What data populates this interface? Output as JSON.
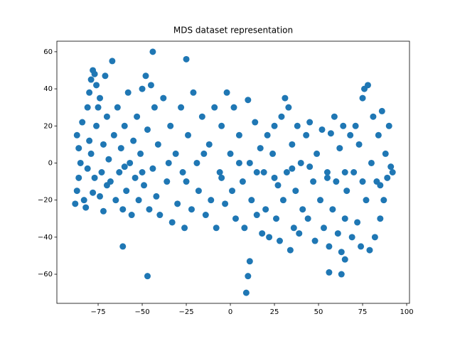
{
  "chart_data": {
    "type": "scatter",
    "title": "MDS dataset representation",
    "color": "#1f77b4",
    "x": [
      -88,
      -87,
      -86,
      -85,
      -86,
      -87,
      -84,
      -83,
      -82,
      -81,
      -80,
      -79,
      -78,
      -77,
      -76,
      -78,
      -77,
      -79,
      -80,
      -81,
      -76,
      -75,
      -74,
      -73,
      -72,
      -74,
      -72,
      -71,
      -70,
      -69,
      -67,
      -44,
      -25,
      -61,
      -47,
      9,
      10,
      11,
      56,
      63,
      65,
      -68,
      -66,
      -65,
      -64,
      -63,
      -62,
      -61,
      -60,
      -59,
      -58,
      -57,
      -56,
      -55,
      -54,
      -53,
      -52,
      -51,
      -50,
      -49,
      -48,
      -47,
      -46,
      -45,
      -44,
      -43,
      -42,
      -41,
      -40,
      -38,
      -36,
      -34,
      -33,
      -31,
      -30,
      -28,
      -27,
      -26,
      -24,
      -22,
      -21,
      -19,
      -18,
      -16,
      -14,
      -12,
      -11,
      -9,
      -8,
      -6,
      -5,
      -3,
      -2,
      0,
      1,
      2,
      3,
      5,
      7,
      8,
      10,
      11,
      12,
      14,
      15,
      17,
      18,
      19,
      20,
      21,
      22,
      24,
      25,
      26,
      27,
      28,
      29,
      30,
      31,
      32,
      33,
      34,
      35,
      36,
      37,
      38,
      39,
      40,
      41,
      43,
      44,
      45,
      47,
      48,
      49,
      51,
      52,
      53,
      55,
      56,
      57,
      58,
      59,
      60,
      61,
      62,
      63,
      64,
      65,
      66,
      68,
      69,
      70,
      71,
      72,
      73,
      74,
      75,
      76,
      77,
      78,
      79,
      80,
      81,
      82,
      83,
      84,
      85,
      86,
      87,
      88,
      89,
      90,
      91,
      92,
      -70,
      -60,
      -50,
      -35,
      -25,
      -15,
      -5,
      5,
      15,
      25,
      35,
      45,
      55,
      65,
      75,
      85
    ],
    "y": [
      -22,
      -15,
      -8,
      0,
      8,
      15,
      22,
      -20,
      -24,
      30,
      38,
      45,
      50,
      48,
      42,
      -16,
      -8,
      5,
      12,
      -3,
      20,
      30,
      35,
      -5,
      10,
      -18,
      -26,
      47,
      25,
      2,
      55,
      60,
      56,
      -45,
      -61,
      -70,
      -61,
      -53,
      -59,
      -60,
      -52,
      -10,
      15,
      -20,
      30,
      -5,
      8,
      -25,
      20,
      -15,
      38,
      0,
      -28,
      12,
      -8,
      25,
      -20,
      5,
      40,
      -12,
      47,
      18,
      -25,
      42,
      -3,
      30,
      -18,
      10,
      -28,
      35,
      -10,
      20,
      -32,
      5,
      -22,
      30,
      -5,
      -35,
      15,
      -25,
      38,
      0,
      -15,
      25,
      -28,
      10,
      -20,
      30,
      -35,
      -5,
      20,
      -22,
      38,
      5,
      -15,
      30,
      -30,
      15,
      -10,
      -35,
      34,
      0,
      -20,
      22,
      -28,
      8,
      -38,
      -5,
      -25,
      15,
      -40,
      5,
      20,
      -30,
      -12,
      -42,
      25,
      -20,
      35,
      -5,
      30,
      -47,
      10,
      -35,
      -15,
      20,
      -38,
      0,
      -25,
      15,
      -30,
      22,
      -10,
      -42,
      5,
      -20,
      18,
      -35,
      -5,
      -45,
      16,
      -25,
      25,
      -10,
      -38,
      8,
      -48,
      20,
      -30,
      -15,
      15,
      -40,
      -5,
      20,
      -32,
      10,
      -45,
      35,
      40,
      -20,
      42,
      -47,
      0,
      25,
      -40,
      -10,
      15,
      -30,
      28,
      -20,
      5,
      -8,
      20,
      -2,
      -5,
      -12,
      -2,
      -5,
      0,
      -10,
      5,
      -8,
      0,
      -5,
      -8,
      -3,
      -2,
      -8,
      -5,
      -10,
      -12
    ],
    "xlim": [
      -98.4,
      101.6
    ],
    "ylim": [
      -75.7,
      65.7
    ],
    "xticks": [
      {
        "value": -75,
        "label": "−75"
      },
      {
        "value": -50,
        "label": "−50"
      },
      {
        "value": -25,
        "label": "−25"
      },
      0,
      25,
      50,
      75,
      100
    ],
    "yticks": [
      {
        "value": -60,
        "label": "−60"
      },
      {
        "value": -40,
        "label": "−40"
      },
      {
        "value": -20,
        "label": "−20"
      },
      0,
      20,
      40,
      60
    ]
  }
}
